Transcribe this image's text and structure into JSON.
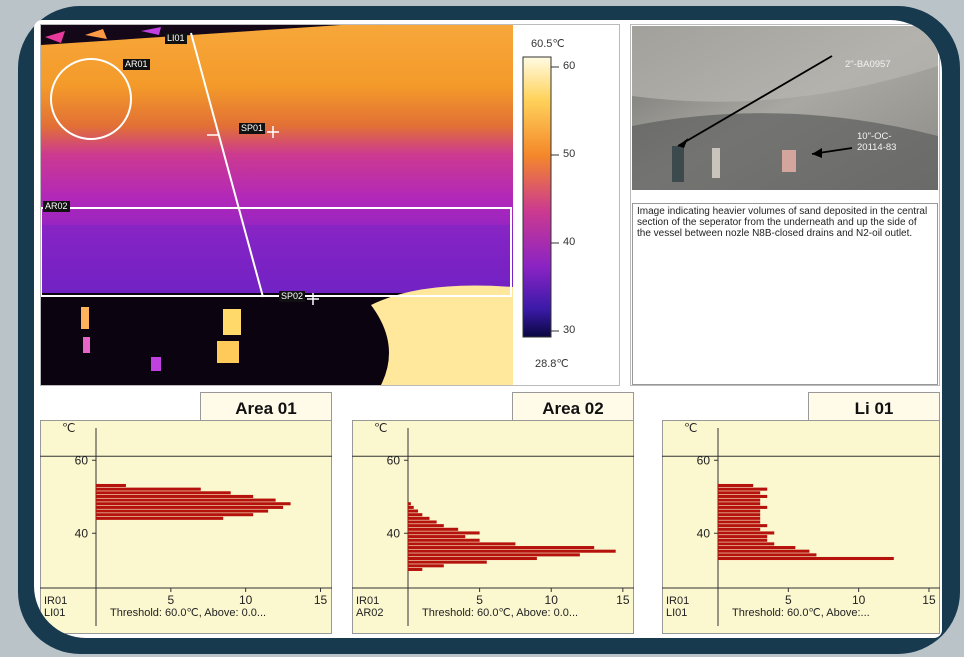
{
  "ir_image": {
    "max_label": "60.5℃",
    "min_label": "28.8℃",
    "scale_ticks": [
      "60",
      "50",
      "40",
      "30"
    ],
    "overlays": [
      "LI01",
      "AR01",
      "SP01",
      "AR02",
      "SP02"
    ]
  },
  "photo": {
    "annotations": [
      "2\"-BA0957",
      "10\"-OC-\n20114-83"
    ]
  },
  "note_text": "Image indicating heavier volumes of sand deposited in the central section of the seperator from the underneath and up the side of the vessel between nozle N8B-closed drains and N2-oil outlet.",
  "chart_data": [
    {
      "type": "bar",
      "orientation": "horizontal",
      "title": "Area 01",
      "ylabel": "℃",
      "yticks": [
        "60",
        "40"
      ],
      "xticks": [
        "5",
        "10",
        "15"
      ],
      "corner_labels": [
        "IR01",
        "LI01"
      ],
      "footer": "Threshold: 60.0℃, Above: 0.0...",
      "xlim": [
        0,
        15.5
      ],
      "ylim": [
        25,
        65
      ],
      "bins": [
        {
          "y": 44,
          "value": 8.5
        },
        {
          "y": 45,
          "value": 10.5
        },
        {
          "y": 46,
          "value": 11.5
        },
        {
          "y": 47,
          "value": 12.5
        },
        {
          "y": 48,
          "value": 13.0
        },
        {
          "y": 49,
          "value": 12.0
        },
        {
          "y": 50,
          "value": 10.5
        },
        {
          "y": 51,
          "value": 9.0
        },
        {
          "y": 52,
          "value": 7.0
        },
        {
          "y": 53,
          "value": 2.0
        }
      ]
    },
    {
      "type": "bar",
      "orientation": "horizontal",
      "title": "Area 02",
      "ylabel": "℃",
      "yticks": [
        "60",
        "40"
      ],
      "xticks": [
        "5",
        "10",
        "15"
      ],
      "corner_labels": [
        "IR01",
        "AR02"
      ],
      "footer": "Threshold: 60.0℃, Above: 0.0...",
      "xlim": [
        0,
        15.5
      ],
      "ylim": [
        25,
        65
      ],
      "bins": [
        {
          "y": 30,
          "value": 1.0
        },
        {
          "y": 31,
          "value": 2.5
        },
        {
          "y": 32,
          "value": 5.5
        },
        {
          "y": 33,
          "value": 9.0
        },
        {
          "y": 34,
          "value": 12.0
        },
        {
          "y": 35,
          "value": 14.5
        },
        {
          "y": 36,
          "value": 13.0
        },
        {
          "y": 37,
          "value": 7.5
        },
        {
          "y": 38,
          "value": 5.0
        },
        {
          "y": 39,
          "value": 4.0
        },
        {
          "y": 40,
          "value": 5.0
        },
        {
          "y": 41,
          "value": 3.5
        },
        {
          "y": 42,
          "value": 2.5
        },
        {
          "y": 43,
          "value": 2.0
        },
        {
          "y": 44,
          "value": 1.5
        },
        {
          "y": 45,
          "value": 1.0
        },
        {
          "y": 46,
          "value": 0.7
        },
        {
          "y": 47,
          "value": 0.4
        },
        {
          "y": 48,
          "value": 0.2
        }
      ]
    },
    {
      "type": "bar",
      "orientation": "horizontal",
      "title": "Li 01",
      "ylabel": "℃",
      "yticks": [
        "60",
        "40"
      ],
      "xticks": [
        "5",
        "10",
        "15"
      ],
      "corner_labels": [
        "IR01",
        "LI01"
      ],
      "footer": "Threshold: 60.0℃, Above:...",
      "xlim": [
        0,
        15.5
      ],
      "ylim": [
        25,
        65
      ],
      "bins": [
        {
          "y": 33,
          "value": 12.5
        },
        {
          "y": 34,
          "value": 7.0
        },
        {
          "y": 35,
          "value": 6.5
        },
        {
          "y": 36,
          "value": 5.5
        },
        {
          "y": 37,
          "value": 4.0
        },
        {
          "y": 38,
          "value": 3.5
        },
        {
          "y": 39,
          "value": 3.5
        },
        {
          "y": 40,
          "value": 4.0
        },
        {
          "y": 41,
          "value": 3.0
        },
        {
          "y": 42,
          "value": 3.5
        },
        {
          "y": 43,
          "value": 3.0
        },
        {
          "y": 44,
          "value": 3.0
        },
        {
          "y": 45,
          "value": 3.0
        },
        {
          "y": 46,
          "value": 3.0
        },
        {
          "y": 47,
          "value": 3.5
        },
        {
          "y": 48,
          "value": 3.0
        },
        {
          "y": 49,
          "value": 3.0
        },
        {
          "y": 50,
          "value": 3.5
        },
        {
          "y": 51,
          "value": 3.0
        },
        {
          "y": 52,
          "value": 3.5
        },
        {
          "y": 53,
          "value": 2.5
        }
      ]
    }
  ]
}
